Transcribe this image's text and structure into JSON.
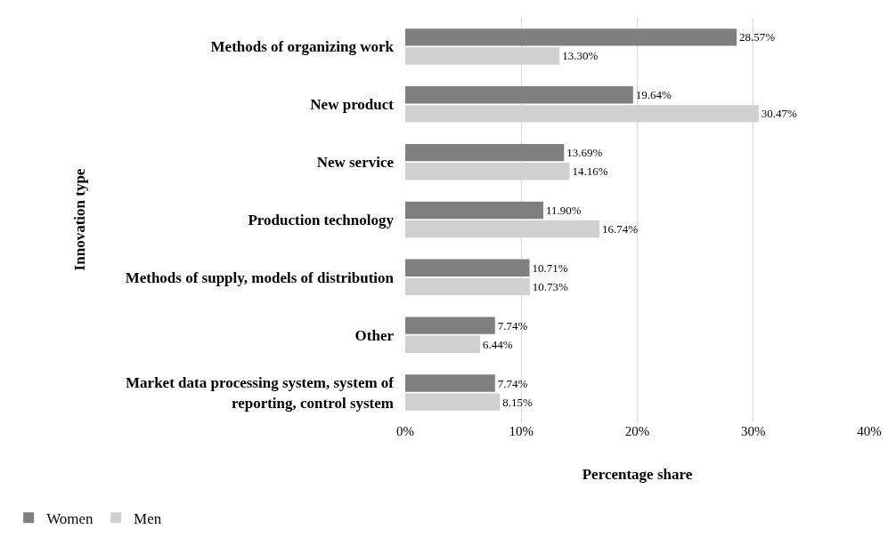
{
  "chart_data": {
    "type": "bar",
    "orientation": "horizontal",
    "xlabel": "Percentage share",
    "ylabel": "Innovation type",
    "categories": [
      "Methods of organizing work",
      "New product",
      "New service",
      "Production technology",
      "Methods of supply, models of distribution",
      "Other",
      "Market data processing system, system of reporting, control system"
    ],
    "series": [
      {
        "name": "Women",
        "color": "#7f7f7f",
        "values": [
          28.57,
          19.64,
          13.69,
          11.9,
          10.71,
          7.74,
          7.74
        ],
        "value_labels": [
          "28.57%",
          "19.64%",
          "13.69%",
          "11.90%",
          "10.71%",
          "7.74%",
          "7.74%"
        ]
      },
      {
        "name": "Men",
        "color": "#d0d0d0",
        "values": [
          13.3,
          30.47,
          14.16,
          16.74,
          10.73,
          6.44,
          8.15
        ],
        "value_labels": [
          "13.30%",
          "30.47%",
          "14.16%",
          "16.74%",
          "10.73%",
          "6.44%",
          "8.15%"
        ]
      }
    ],
    "xlim": [
      0,
      40
    ],
    "xticks": [
      {
        "value": 0,
        "label": "0%"
      },
      {
        "value": 10,
        "label": "10%"
      },
      {
        "value": 20,
        "label": "20%"
      },
      {
        "value": 30,
        "label": "30%"
      },
      {
        "value": 40,
        "label": "40%"
      }
    ],
    "grid": "x",
    "legend": "bottom left"
  }
}
